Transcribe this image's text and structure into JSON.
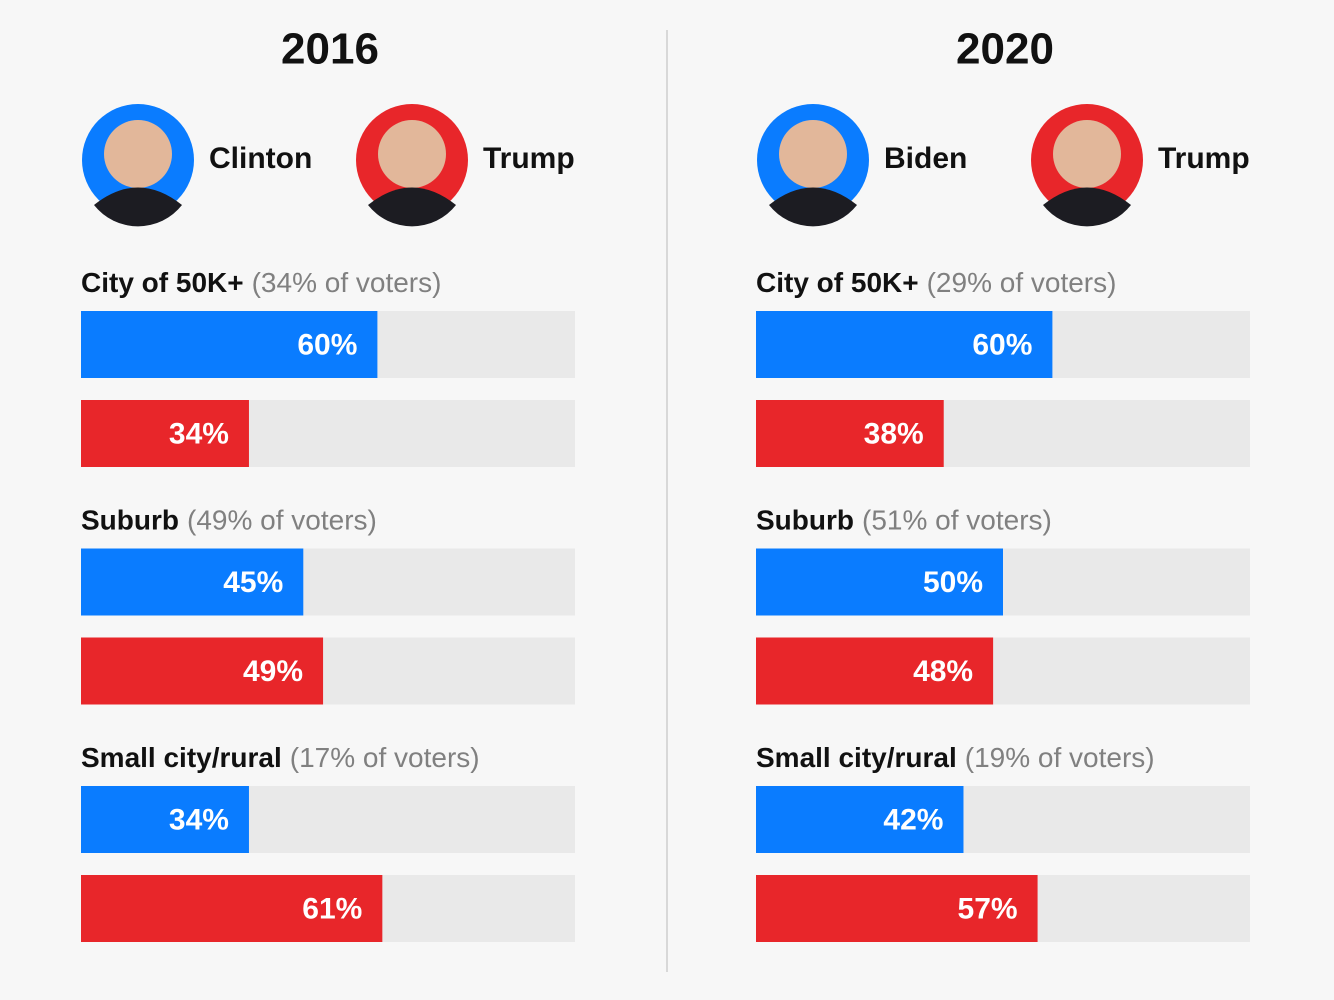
{
  "chart_data": [
    {
      "type": "bar",
      "title": "2016",
      "xlim": [
        0,
        100
      ],
      "categories": [
        "City of 50K+",
        "Suburb",
        "Small city/rural"
      ],
      "category_notes": [
        "(34% of voters)",
        "(49% of voters)",
        "(17% of voters)"
      ],
      "series": [
        {
          "name": "Clinton",
          "color": "#0a7cff",
          "values": [
            60,
            45,
            34
          ],
          "value_labels": [
            "60%",
            "45%",
            "34%"
          ]
        },
        {
          "name": "Trump",
          "color": "#e8262a",
          "values": [
            34,
            49,
            61
          ],
          "value_labels": [
            "34%",
            "49%",
            "61%"
          ]
        }
      ]
    },
    {
      "type": "bar",
      "title": "2020",
      "xlim": [
        0,
        100
      ],
      "categories": [
        "City of 50K+",
        "Suburb",
        "Small city/rural"
      ],
      "category_notes": [
        "(29% of voters)",
        "(51% of voters)",
        "(19% of voters)"
      ],
      "series": [
        {
          "name": "Biden",
          "color": "#0a7cff",
          "values": [
            60,
            50,
            42
          ],
          "value_labels": [
            "60%",
            "50%",
            "42%"
          ]
        },
        {
          "name": "Trump",
          "color": "#e8262a",
          "values": [
            38,
            48,
            57
          ],
          "value_labels": [
            "38%",
            "48%",
            "57%"
          ]
        }
      ]
    }
  ]
}
